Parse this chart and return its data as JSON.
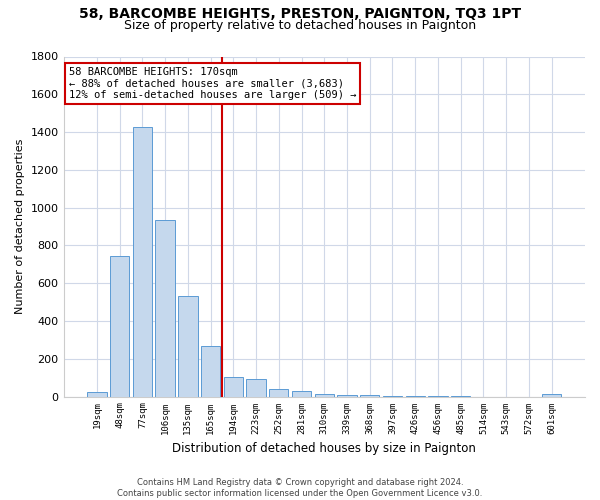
{
  "title": "58, BARCOMBE HEIGHTS, PRESTON, PAIGNTON, TQ3 1PT",
  "subtitle": "Size of property relative to detached houses in Paignton",
  "xlabel": "Distribution of detached houses by size in Paignton",
  "ylabel": "Number of detached properties",
  "categories": [
    "19sqm",
    "48sqm",
    "77sqm",
    "106sqm",
    "135sqm",
    "165sqm",
    "194sqm",
    "223sqm",
    "252sqm",
    "281sqm",
    "310sqm",
    "339sqm",
    "368sqm",
    "397sqm",
    "426sqm",
    "456sqm",
    "485sqm",
    "514sqm",
    "543sqm",
    "572sqm",
    "601sqm"
  ],
  "values": [
    22,
    745,
    1425,
    937,
    533,
    268,
    104,
    93,
    40,
    27,
    16,
    9,
    8,
    4,
    2,
    2,
    1,
    0,
    0,
    0,
    13
  ],
  "bar_color": "#c5d8ed",
  "bar_edge_color": "#5b9bd5",
  "vline_x": 5.5,
  "vline_color": "#cc0000",
  "annotation_title": "58 BARCOMBE HEIGHTS: 170sqm",
  "annotation_line1": "← 88% of detached houses are smaller (3,683)",
  "annotation_line2": "12% of semi-detached houses are larger (509) →",
  "annotation_box_color": "#cc0000",
  "footer_line1": "Contains HM Land Registry data © Crown copyright and database right 2024.",
  "footer_line2": "Contains public sector information licensed under the Open Government Licence v3.0.",
  "bg_color": "#ffffff",
  "plot_bg_color": "#ffffff",
  "grid_color": "#d0d8e8",
  "ylim": [
    0,
    1800
  ],
  "yticks": [
    0,
    200,
    400,
    600,
    800,
    1000,
    1200,
    1400,
    1600,
    1800
  ],
  "title_fontsize": 10,
  "subtitle_fontsize": 9
}
